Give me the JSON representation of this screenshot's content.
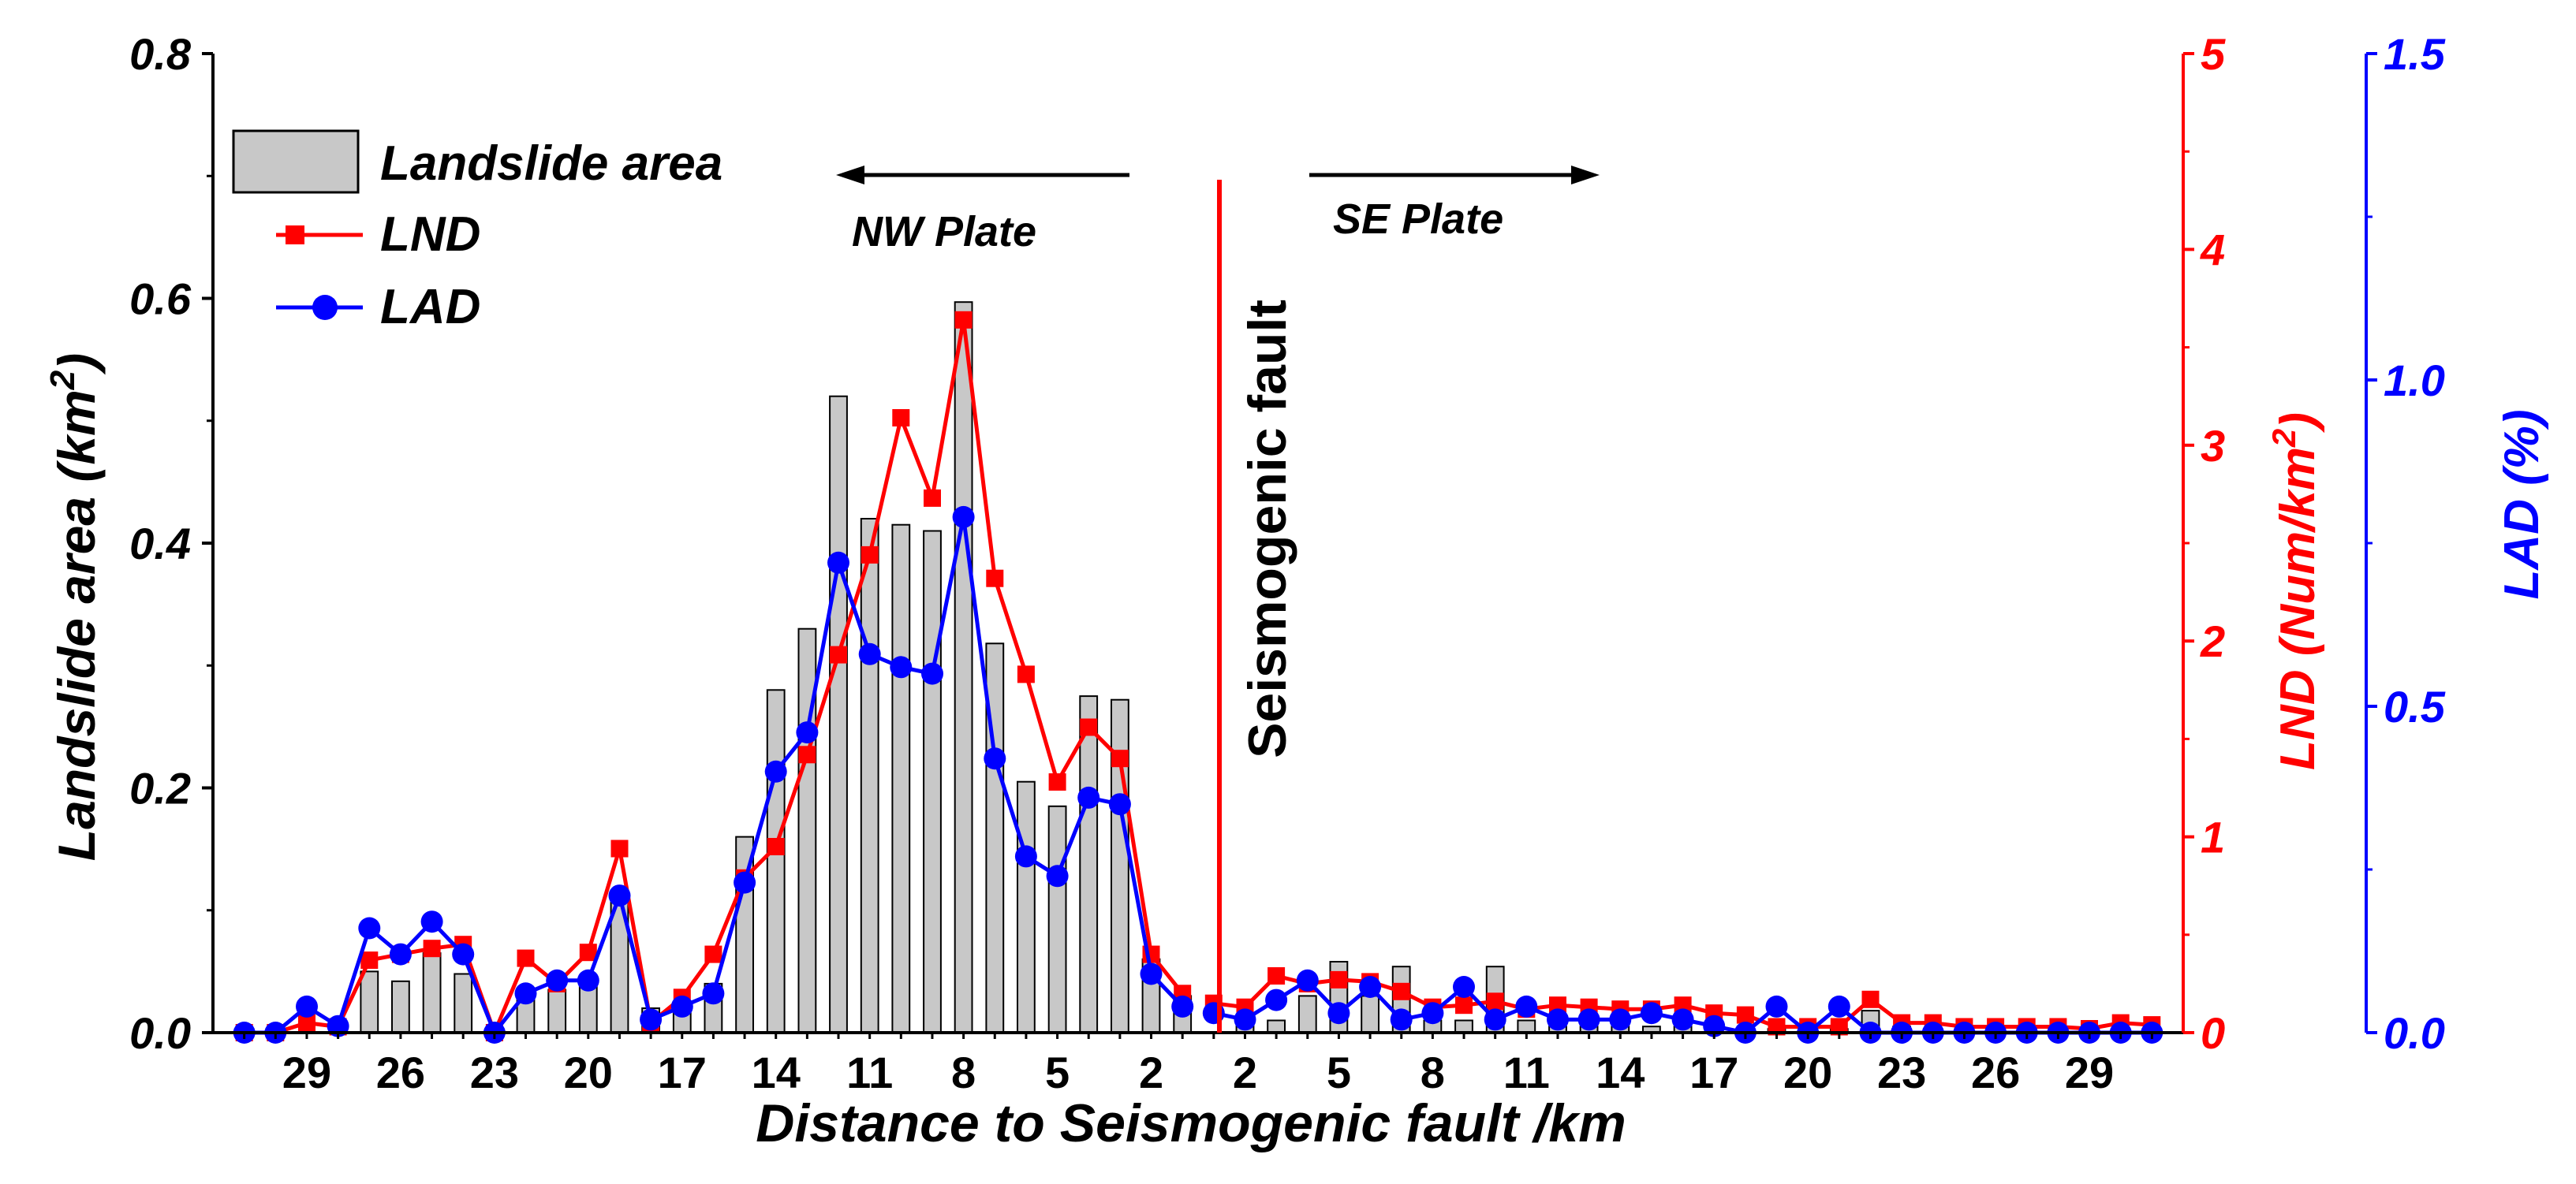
{
  "chart_data": {
    "type": "bar",
    "x_title": "Distance to Seismogenic fault /km",
    "y_left": {
      "title": "Landslide area (km",
      "title_sup": "2",
      "title_close": ")",
      "range": [
        0,
        0.8
      ],
      "ticks": [
        "0.0",
        "0.2",
        "0.4",
        "0.6",
        "0.8"
      ],
      "color": "#000000"
    },
    "y_red": {
      "title": "LND (Num/km",
      "title_sup": "2",
      "title_close": ")",
      "range": [
        0,
        5
      ],
      "ticks": [
        "0",
        "1",
        "2",
        "3",
        "4",
        "5"
      ],
      "color": "#ff0000"
    },
    "y_blue": {
      "title": "LAD (%)",
      "range": [
        0,
        1.5
      ],
      "ticks": [
        "0.0",
        "0.5",
        "1.0",
        "1.5"
      ],
      "color": "#0000ff"
    },
    "x_ticks_nw": [
      "29",
      "26",
      "23",
      "20",
      "17",
      "14",
      "11",
      "8",
      "5",
      "2"
    ],
    "x_ticks_se": [
      "2",
      "5",
      "8",
      "11",
      "14",
      "17",
      "20",
      "23",
      "26",
      "29"
    ],
    "legend": {
      "area": "Landslide area",
      "lnd": "LND",
      "lad": "LAD"
    },
    "annotations": {
      "nw_plate": "NW Plate",
      "se_plate": "SE Plate",
      "fault": "Seismogenic fault"
    },
    "colors": {
      "bar_fill": "#c8c8c8",
      "bar_stroke": "#000000",
      "lnd": "#ff0000",
      "lad": "#0000ff",
      "fault": "#ff0000"
    },
    "nw_distances_km": [
      31,
      30,
      29,
      28,
      27,
      26,
      25,
      24,
      23,
      22,
      21,
      20,
      19,
      18,
      17,
      16,
      15,
      14,
      13,
      12,
      11,
      10,
      9,
      8,
      7,
      6,
      5,
      4,
      3,
      2,
      1
    ],
    "nw_area": [
      0.0,
      0.0,
      0.0,
      0.0,
      0.05,
      0.042,
      0.065,
      0.048,
      0.0,
      0.03,
      0.035,
      0.045,
      0.11,
      0.02,
      0.02,
      0.04,
      0.16,
      0.28,
      0.33,
      0.52,
      0.42,
      0.415,
      0.41,
      0.597,
      0.318,
      0.205,
      0.185,
      0.275,
      0.272,
      0.06,
      0.03
    ],
    "nw_lnd": [
      0.0,
      0.0,
      0.05,
      0.03,
      0.37,
      0.4,
      0.43,
      0.45,
      0.0,
      0.38,
      0.25,
      0.41,
      0.94,
      0.05,
      0.18,
      0.4,
      0.79,
      0.95,
      1.42,
      1.93,
      2.44,
      3.14,
      2.73,
      3.64,
      2.32,
      1.83,
      1.28,
      1.56,
      1.4,
      0.4,
      0.2
    ],
    "nw_lad": [
      0.0,
      0.0,
      0.04,
      0.01,
      0.16,
      0.12,
      0.17,
      0.12,
      0.0,
      0.06,
      0.08,
      0.08,
      0.21,
      0.02,
      0.04,
      0.06,
      0.23,
      0.4,
      0.46,
      0.72,
      0.58,
      0.56,
      0.55,
      0.79,
      0.42,
      0.27,
      0.24,
      0.36,
      0.35,
      0.09,
      0.04
    ]
  },
  "se_area": [
    0.0,
    0.01,
    0.01,
    0.03,
    0.058,
    0.03,
    0.054,
    0.01,
    0.01,
    0.054,
    0.01,
    0.005,
    0.005,
    0.005,
    0.005,
    0.005,
    0.005,
    0.003,
    0.003,
    0.003,
    0.003,
    0.018,
    0.005,
    0.002,
    0.002,
    0.002,
    0.002,
    0.002,
    0.002,
    0.002,
    0.002
  ],
  "se_lnd": [
    0.15,
    0.13,
    0.29,
    0.25,
    0.27,
    0.26,
    0.21,
    0.13,
    0.14,
    0.16,
    0.12,
    0.14,
    0.13,
    0.12,
    0.12,
    0.14,
    0.1,
    0.09,
    0.03,
    0.03,
    0.03,
    0.17,
    0.05,
    0.05,
    0.03,
    0.03,
    0.03,
    0.03,
    0.02,
    0.05,
    0.04
  ],
  "se_lad": [
    0.03,
    0.02,
    0.05,
    0.08,
    0.03,
    0.07,
    0.02,
    0.03,
    0.07,
    0.02,
    0.04,
    0.02,
    0.02,
    0.02,
    0.03,
    0.02,
    0.01,
    0.0,
    0.04,
    0.0,
    0.04,
    0.0,
    0.0,
    0.0,
    0.0,
    0.0,
    0.0,
    0.0,
    0.0,
    0.0,
    0.0
  ]
}
